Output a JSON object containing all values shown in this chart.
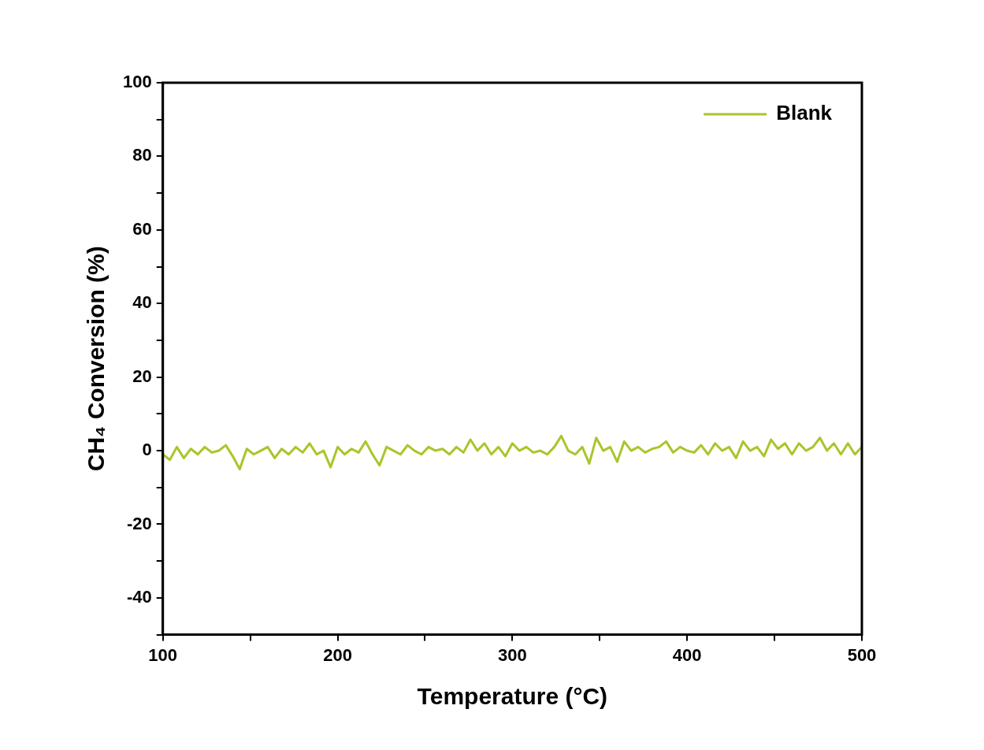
{
  "chart_data": {
    "type": "line",
    "xlabel": "Temperature (°C)",
    "ylabel": "CH₄ Conversion (%)",
    "xlim": [
      100,
      500
    ],
    "xticks": [
      100,
      {
        "value": 150,
        "label": null
      },
      200,
      {
        "value": 250,
        "label": null
      },
      300,
      {
        "value": 350,
        "label": null
      },
      400,
      {
        "value": 450,
        "label": null
      },
      500
    ],
    "ylim": [
      -50,
      100
    ],
    "yticks": [
      {
        "value": -50,
        "label": null
      },
      -40,
      {
        "value": -30,
        "label": null
      },
      -20,
      {
        "value": -10,
        "label": null
      },
      0,
      {
        "value": 10,
        "label": null
      },
      20,
      {
        "value": 30,
        "label": null
      },
      40,
      {
        "value": 50,
        "label": null
      },
      60,
      {
        "value": 70,
        "label": null
      },
      80,
      {
        "value": 90,
        "label": null
      },
      100
    ],
    "grid": false,
    "legend": "top right",
    "marker": "none",
    "line_style": "solid",
    "series": [
      {
        "name": "Blank",
        "color": "#a8c62a",
        "x": [
          100,
          104,
          108,
          112,
          116,
          120,
          124,
          128,
          132,
          136,
          140,
          144,
          148,
          152,
          156,
          160,
          164,
          168,
          172,
          176,
          180,
          184,
          188,
          192,
          196,
          200,
          204,
          208,
          212,
          216,
          220,
          224,
          228,
          232,
          236,
          240,
          244,
          248,
          252,
          256,
          260,
          264,
          268,
          272,
          276,
          280,
          284,
          288,
          292,
          296,
          300,
          304,
          308,
          312,
          316,
          320,
          324,
          328,
          332,
          336,
          340,
          344,
          348,
          352,
          356,
          360,
          364,
          368,
          372,
          376,
          380,
          384,
          388,
          392,
          396,
          400,
          404,
          408,
          412,
          416,
          420,
          424,
          428,
          432,
          436,
          440,
          444,
          448,
          452,
          456,
          460,
          464,
          468,
          472,
          476,
          480,
          484,
          488,
          492,
          496,
          500
        ],
        "values": [
          -1,
          -2.5,
          1,
          -2,
          0.5,
          -1,
          1,
          -0.5,
          0,
          1.5,
          -1.5,
          -5,
          0.5,
          -1,
          0,
          1,
          -2,
          0.5,
          -1,
          1,
          -0.5,
          2,
          -1,
          0,
          -4.5,
          1,
          -1,
          0.5,
          -0.5,
          2.5,
          -1,
          -4,
          1,
          0,
          -1,
          1.5,
          0,
          -1,
          1,
          0,
          0.5,
          -1,
          1,
          -0.5,
          3,
          0,
          2,
          -1,
          1,
          -1.5,
          2,
          0,
          1,
          -0.5,
          0,
          -1,
          1,
          4,
          0,
          -1,
          1,
          -3.5,
          3.5,
          0,
          1,
          -3,
          2.5,
          0,
          1,
          -0.5,
          0.5,
          1,
          2.5,
          -0.5,
          1,
          0,
          -0.5,
          1.5,
          -1,
          2,
          0,
          1,
          -2,
          2.5,
          0,
          1,
          -1.5,
          3,
          0.5,
          2,
          -1,
          2,
          0,
          1,
          3.5,
          0,
          2,
          -1,
          2,
          -1,
          1
        ]
      }
    ]
  }
}
